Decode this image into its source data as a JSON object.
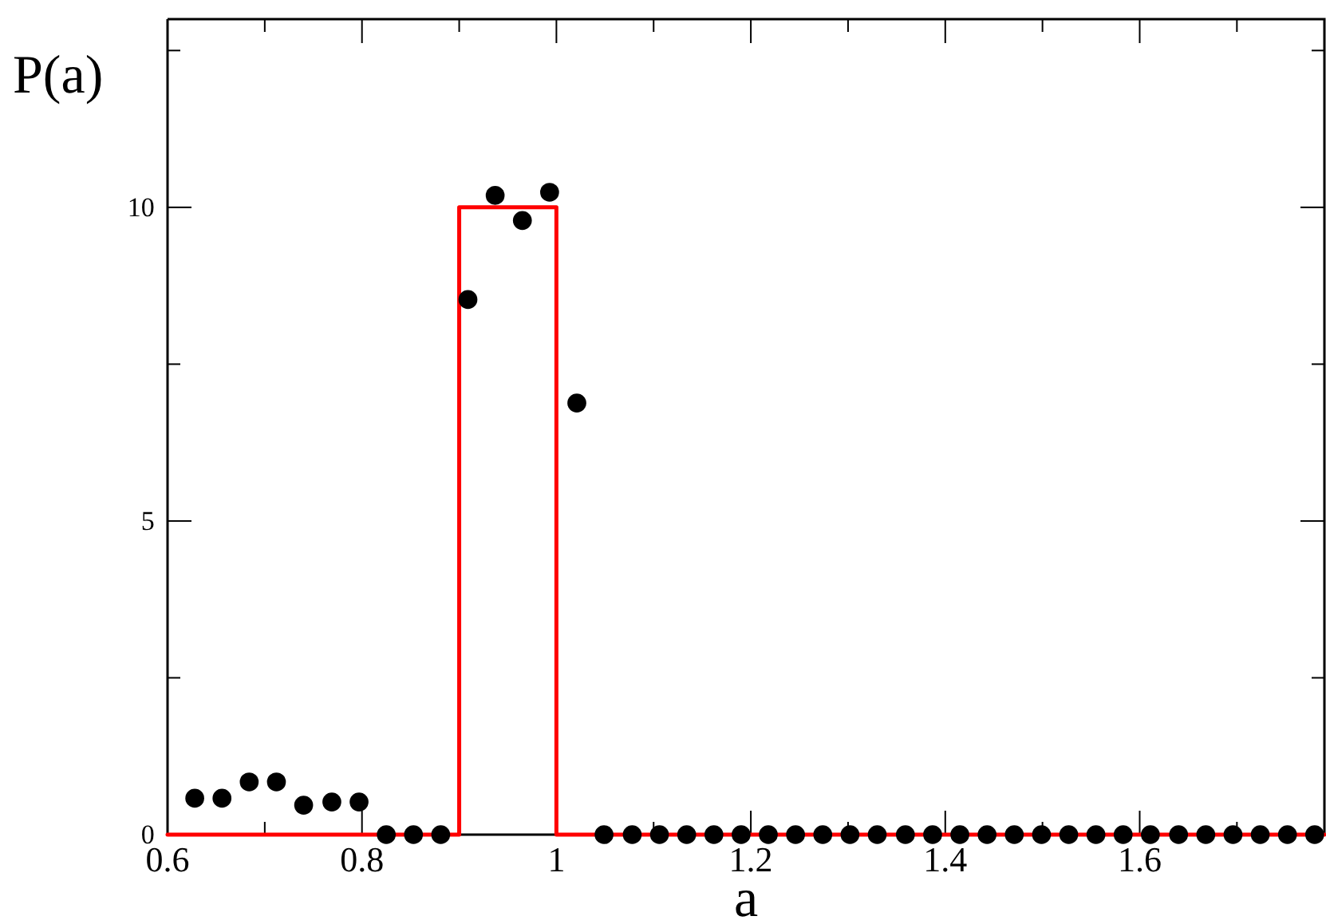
{
  "chart_data": {
    "type": "scatter",
    "xlabel": "a",
    "ylabel": "P(a)",
    "xlim": [
      0.6,
      1.79
    ],
    "ylim": [
      0,
      13
    ],
    "xticks": [
      0.6,
      {
        "value": 0.7,
        "label": null
      },
      0.8,
      {
        "value": 0.9,
        "label": null
      },
      1,
      {
        "value": 1.1,
        "label": null
      },
      1.2,
      {
        "value": 1.3,
        "label": null
      },
      1.4,
      {
        "value": 1.5,
        "label": null
      },
      1.6,
      {
        "value": 1.7,
        "label": null
      }
    ],
    "yticks": [
      0,
      {
        "value": 2.5,
        "label": null
      },
      5,
      {
        "value": 7.5,
        "label": null
      },
      10,
      {
        "value": 12.5,
        "label": null
      }
    ],
    "grid": false,
    "series": [
      {
        "color": "#000000",
        "marker": "circle",
        "x": [
          0.628,
          0.656,
          0.684,
          0.712,
          0.74,
          0.769,
          0.797,
          0.825,
          0.853,
          0.881,
          0.909,
          0.937,
          0.965,
          0.993,
          1.021,
          1.049,
          1.078,
          1.106,
          1.134,
          1.162,
          1.19,
          1.218,
          1.246,
          1.274,
          1.302,
          1.33,
          1.359,
          1.387,
          1.415,
          1.443,
          1.471,
          1.499,
          1.527,
          1.555,
          1.583,
          1.611,
          1.64,
          1.668,
          1.696,
          1.724,
          1.752,
          1.78
        ],
        "values": [
          0.58,
          0.58,
          0.84,
          0.84,
          0.47,
          0.52,
          0.52,
          0,
          0,
          0,
          8.53,
          10.19,
          9.79,
          10.24,
          6.88,
          0,
          0,
          0,
          0,
          0,
          0,
          0,
          0,
          0,
          0,
          0,
          0,
          0,
          0,
          0,
          0,
          0,
          0,
          0,
          0,
          0,
          0,
          0,
          0,
          0,
          0,
          0
        ]
      },
      {
        "type": "line",
        "color": "#ff0000",
        "marker": "none",
        "x": [
          0.6,
          0.9,
          0.9,
          1.0,
          1.0,
          1.79
        ],
        "values": [
          0,
          0,
          10,
          10,
          0,
          0
        ]
      }
    ]
  }
}
